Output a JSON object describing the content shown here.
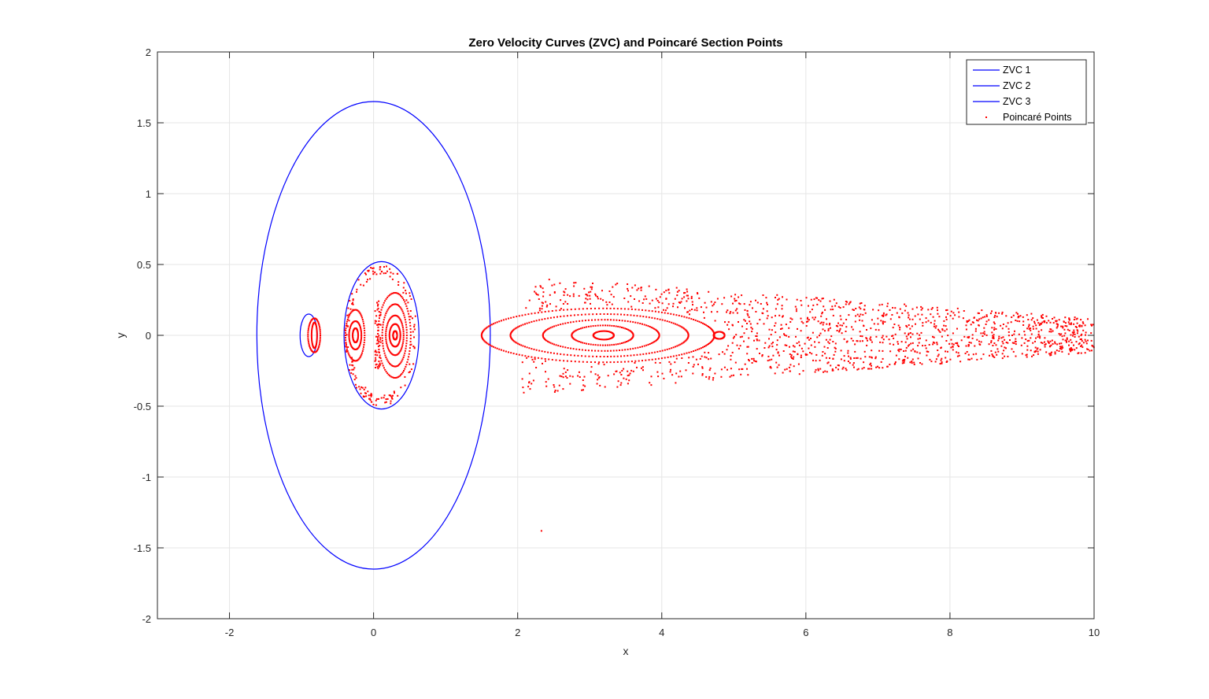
{
  "chart_data": {
    "type": "scatter",
    "title": "Zero Velocity Curves (ZVC) and Poincaré Section Points",
    "xlabel": "x",
    "ylabel": "y",
    "xlim": [
      -3,
      10
    ],
    "ylim": [
      -2,
      2
    ],
    "xticks": [
      -2,
      0,
      2,
      4,
      6,
      8,
      10
    ],
    "yticks": [
      -2,
      -1.5,
      -1,
      -0.5,
      0,
      0.5,
      1,
      1.5,
      2
    ],
    "grid": true,
    "legend_location": "top-right",
    "series": [
      {
        "name": "ZVC 1",
        "kind": "line",
        "color": "#0000ff",
        "shape": "ellipse",
        "center": [
          0,
          0
        ],
        "semi_axes": [
          1.62,
          1.65
        ]
      },
      {
        "name": "ZVC 2",
        "kind": "line",
        "color": "#0000ff",
        "shape": "ellipse",
        "center": [
          0.11,
          0
        ],
        "semi_axes": [
          0.52,
          0.52
        ]
      },
      {
        "name": "ZVC 3",
        "kind": "line",
        "color": "#0000ff",
        "shape": "ellipse",
        "center": [
          -0.9,
          0
        ],
        "semi_axes": [
          0.12,
          0.15
        ]
      },
      {
        "name": "Poincaré Points",
        "kind": "points",
        "color": "#ff0000",
        "marker": "dot",
        "islands": [
          {
            "center": [
              0.3,
              0
            ],
            "semi_axes": [
              [
                0.03,
                0.03
              ],
              [
                0.08,
                0.08
              ],
              [
                0.13,
                0.14
              ],
              [
                0.18,
                0.22
              ],
              [
                0.24,
                0.3
              ]
            ]
          },
          {
            "center": [
              -0.25,
              0
            ],
            "semi_axes": [
              [
                0.04,
                0.05
              ],
              [
                0.09,
                0.1
              ],
              [
                0.14,
                0.18
              ]
            ]
          },
          {
            "center": [
              3.2,
              0
            ],
            "semi_axes": [
              [
                0.15,
                0.03
              ],
              [
                0.45,
                0.07
              ],
              [
                0.85,
                0.11
              ],
              [
                1.3,
                0.15
              ],
              [
                1.7,
                0.19
              ]
            ]
          },
          {
            "center": [
              4.8,
              0
            ],
            "semi_axes": [
              [
                0.08,
                0.025
              ]
            ]
          },
          {
            "center": [
              -0.82,
              0
            ],
            "semi_axes": [
              [
                0.04,
                0.09
              ],
              [
                0.09,
                0.12
              ]
            ]
          }
        ],
        "separatrix": {
          "center": [
            0.1,
            0
          ],
          "semi_axes": [
            0.5,
            0.5
          ]
        },
        "chaotic_band": {
          "x_range": [
            2.05,
            10
          ],
          "y_halfwidth_start": 0.42,
          "y_halfwidth_end": 0.12
        },
        "isolated_point": [
          2.33,
          -1.38
        ]
      }
    ]
  }
}
